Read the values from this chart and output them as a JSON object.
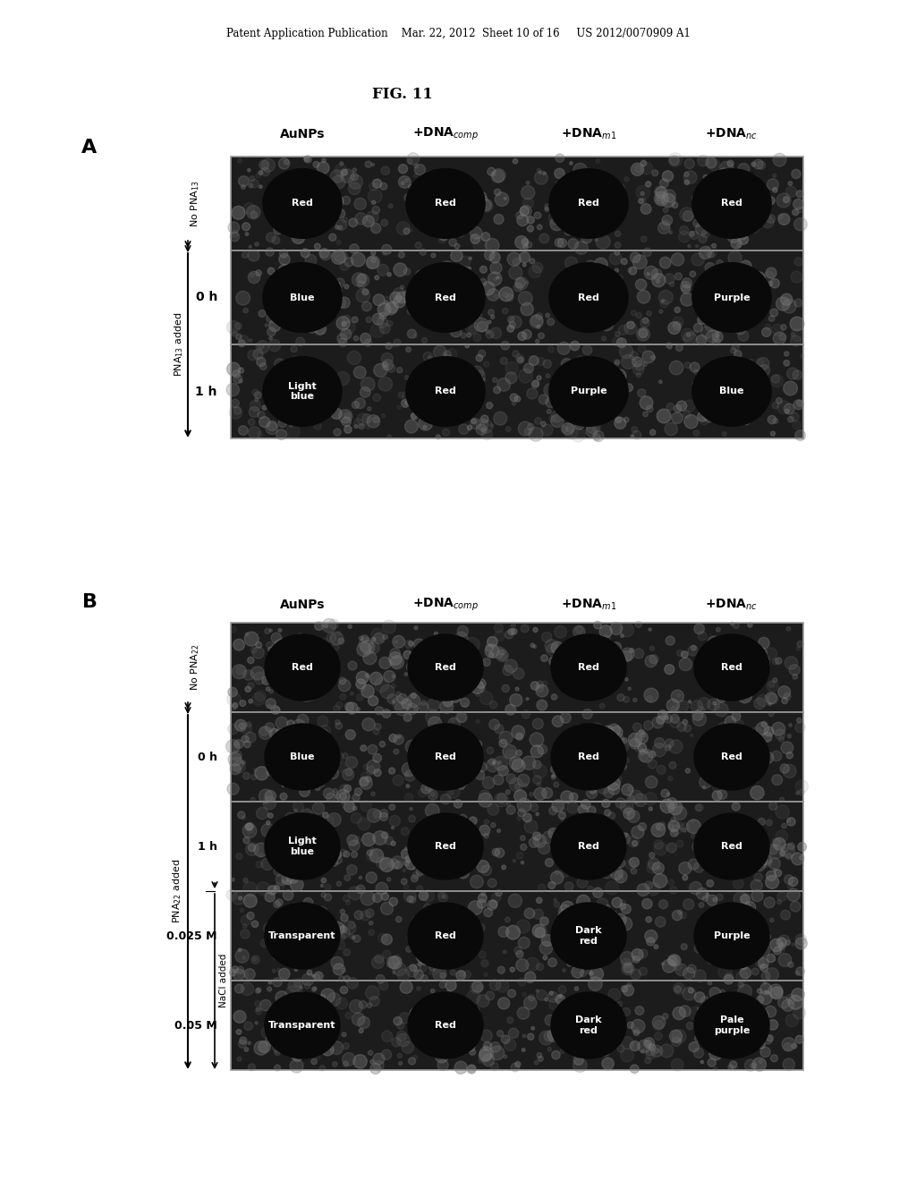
{
  "header": "Patent Application Publication    Mar. 22, 2012  Sheet 10 of 16     US 2012/0070909 A1",
  "fig_title": "FIG. 11",
  "col_headers": [
    "AuNPs",
    "+DNA$_{comp}$",
    "+DNA$_{m1}$",
    "+DNA$_{nc}$"
  ],
  "rows_A": [
    {
      "row_label": "",
      "cells": [
        "Red",
        "Red",
        "Red",
        "Red"
      ]
    },
    {
      "row_label": "0 h",
      "cells": [
        "Blue",
        "Red",
        "Red",
        "Purple"
      ]
    },
    {
      "row_label": "1 h",
      "cells": [
        "Light\nblue",
        "Red",
        "Purple",
        "Blue"
      ]
    }
  ],
  "rows_B": [
    {
      "row_label": "",
      "cells": [
        "Red",
        "Red",
        "Red",
        "Red"
      ]
    },
    {
      "row_label": "0 h",
      "cells": [
        "Blue",
        "Red",
        "Red",
        "Red"
      ]
    },
    {
      "row_label": "1 h",
      "cells": [
        "Light\nblue",
        "Red",
        "Red",
        "Red"
      ]
    },
    {
      "row_label": "0.025 M",
      "cells": [
        "Transparent",
        "Red",
        "Dark\nred",
        "Purple"
      ]
    },
    {
      "row_label": "0.05 M",
      "cells": [
        "Transparent",
        "Red",
        "Dark\nred",
        "Pale\npurple"
      ]
    }
  ],
  "bg_color": "#ffffff"
}
